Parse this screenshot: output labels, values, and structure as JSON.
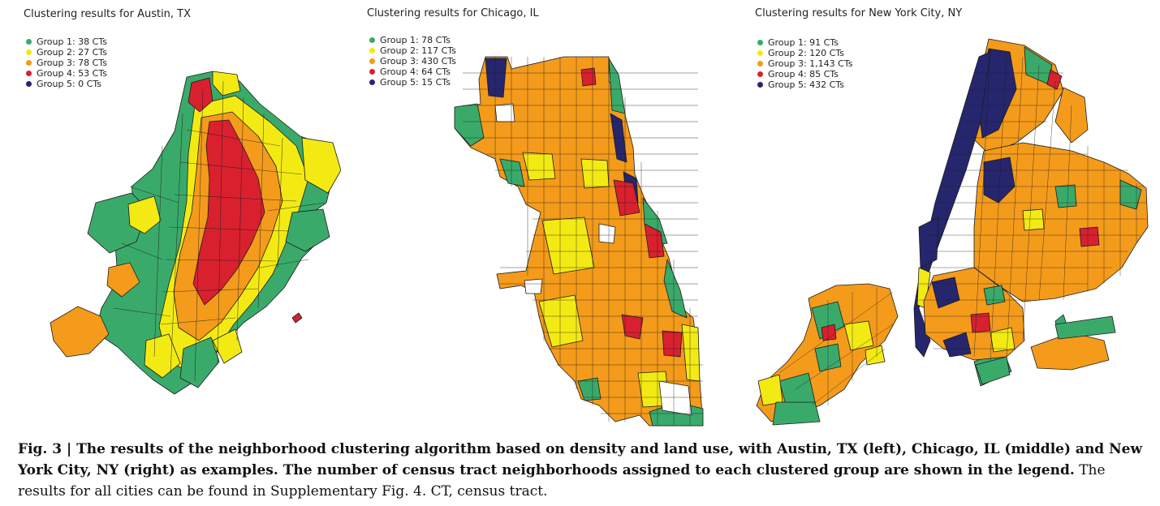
{
  "colors": {
    "group1": "#3aaa6a",
    "group2": "#f3ea14",
    "group3": "#f49b1b",
    "group4": "#d9202f",
    "group5": "#26266e"
  },
  "panels": [
    {
      "title": "Clustering results for Austin, TX",
      "legend": [
        "Group 1: 38 CTs",
        "Group 2: 27 CTs",
        "Group 3: 78 CTs",
        "Group 4: 53 CTs",
        "Group 5: 0 CTs"
      ]
    },
    {
      "title": "Clustering results for Chicago, IL",
      "legend": [
        "Group 1: 78 CTs",
        "Group 2: 117 CTs",
        "Group 3: 430 CTs",
        "Group 4: 64 CTs",
        "Group 5: 15 CTs"
      ]
    },
    {
      "title": "Clustering results for New York City, NY",
      "legend": [
        "Group 1: 91 CTs",
        "Group 2: 120 CTs",
        "Group 3: 1,143 CTs",
        "Group 4: 85 CTs",
        "Group 5: 432 CTs"
      ]
    }
  ],
  "caption": {
    "label": "Fig. 3 | ",
    "bold": "The results of the neighborhood clustering algorithm based on density and land use, with Austin, TX (left), Chicago, IL (middle) and New York City, NY (right) as examples. The number of census tract neighborhoods assigned to each clustered group are shown in the legend.",
    "rest": " The results for all cities can be found in Supplementary Fig. 4. CT, census tract."
  }
}
